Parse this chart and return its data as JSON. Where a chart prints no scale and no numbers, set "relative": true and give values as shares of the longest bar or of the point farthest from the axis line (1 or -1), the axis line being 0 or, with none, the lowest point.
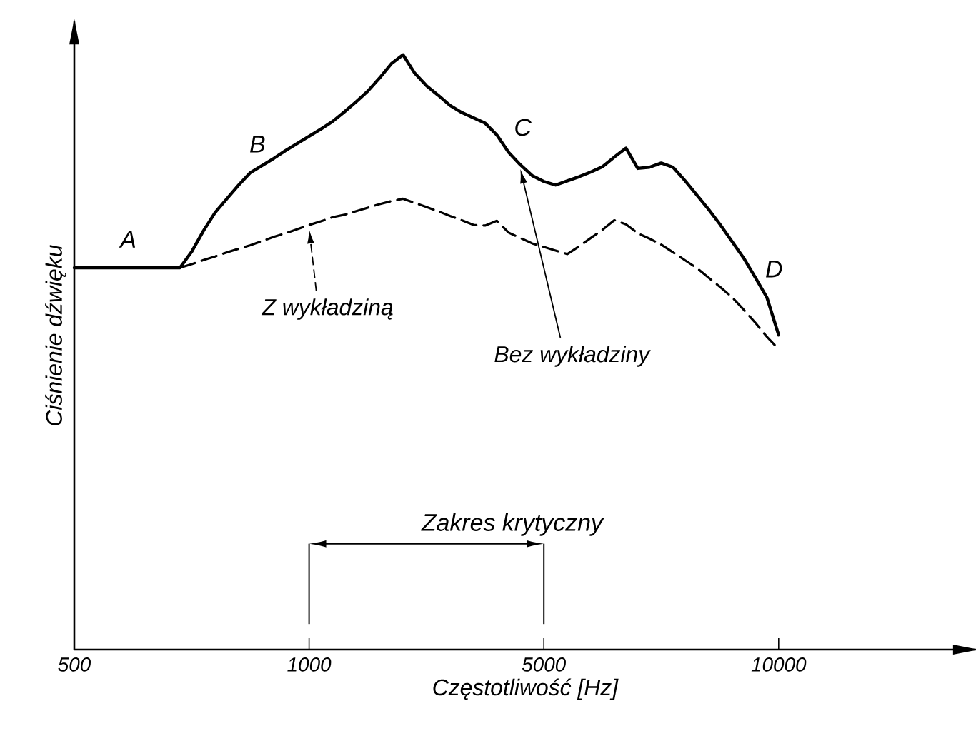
{
  "chart_data": {
    "type": "line",
    "relative": true,
    "xlabel": "Częstotliwość [Hz]",
    "ylabel": "Ciśnienie dźwięku",
    "categories": [
      "500",
      null,
      null,
      null,
      null,
      null,
      null,
      null,
      null,
      null,
      null,
      null,
      null,
      null,
      null,
      null,
      null,
      null,
      null,
      null,
      "1000",
      null,
      null,
      null,
      null,
      null,
      null,
      null,
      null,
      null,
      null,
      null,
      null,
      null,
      null,
      null,
      null,
      null,
      null,
      null,
      "5000",
      null,
      null,
      null,
      null,
      null,
      null,
      null,
      null,
      null,
      null,
      null,
      null,
      null,
      null,
      null,
      null,
      null,
      null,
      null,
      "10000"
    ],
    "series": [
      {
        "name": "Bez wykładziny",
        "color": "#000000",
        "line_style": "solid",
        "values": [
          0.642,
          0.642,
          0.642,
          0.642,
          0.642,
          0.642,
          0.642,
          0.642,
          0.642,
          0.642,
          0.669,
          0.704,
          0.735,
          0.758,
          0.781,
          0.802,
          0.814,
          0.826,
          0.839,
          0.851,
          0.863,
          0.875,
          0.888,
          0.904,
          0.921,
          0.939,
          0.961,
          0.985,
          1.0,
          0.969,
          0.948,
          0.932,
          0.915,
          0.903,
          0.894,
          0.885,
          0.865,
          0.836,
          0.815,
          0.797,
          0.787,
          0.781,
          0.788,
          0.795,
          0.803,
          0.812,
          0.828,
          0.843,
          0.809,
          0.811,
          0.818,
          0.811,
          0.789,
          0.765,
          0.741,
          0.715,
          0.687,
          0.659,
          0.626,
          0.592,
          0.529
        ]
      },
      {
        "name": "Z wykładziną",
        "color": "#000000",
        "line_style": "dashed",
        "values": [
          null,
          null,
          null,
          null,
          null,
          null,
          null,
          null,
          null,
          0.642,
          0.648,
          0.655,
          0.661,
          0.668,
          0.674,
          0.68,
          0.687,
          0.694,
          0.7,
          0.707,
          0.714,
          0.72,
          0.727,
          0.731,
          0.737,
          0.743,
          0.749,
          0.754,
          0.758,
          0.751,
          0.744,
          0.737,
          0.729,
          0.722,
          0.714,
          0.713,
          0.721,
          0.701,
          0.692,
          0.683,
          0.677,
          0.671,
          0.665,
          0.678,
          0.692,
          0.706,
          0.722,
          0.715,
          0.7,
          0.691,
          0.681,
          0.668,
          0.655,
          0.642,
          0.626,
          0.61,
          0.593,
          0.572,
          0.55,
          0.526,
          0.505
        ]
      }
    ],
    "annotations": [
      "A",
      "B",
      "C",
      "D",
      "Zakres krytyczny"
    ]
  }
}
